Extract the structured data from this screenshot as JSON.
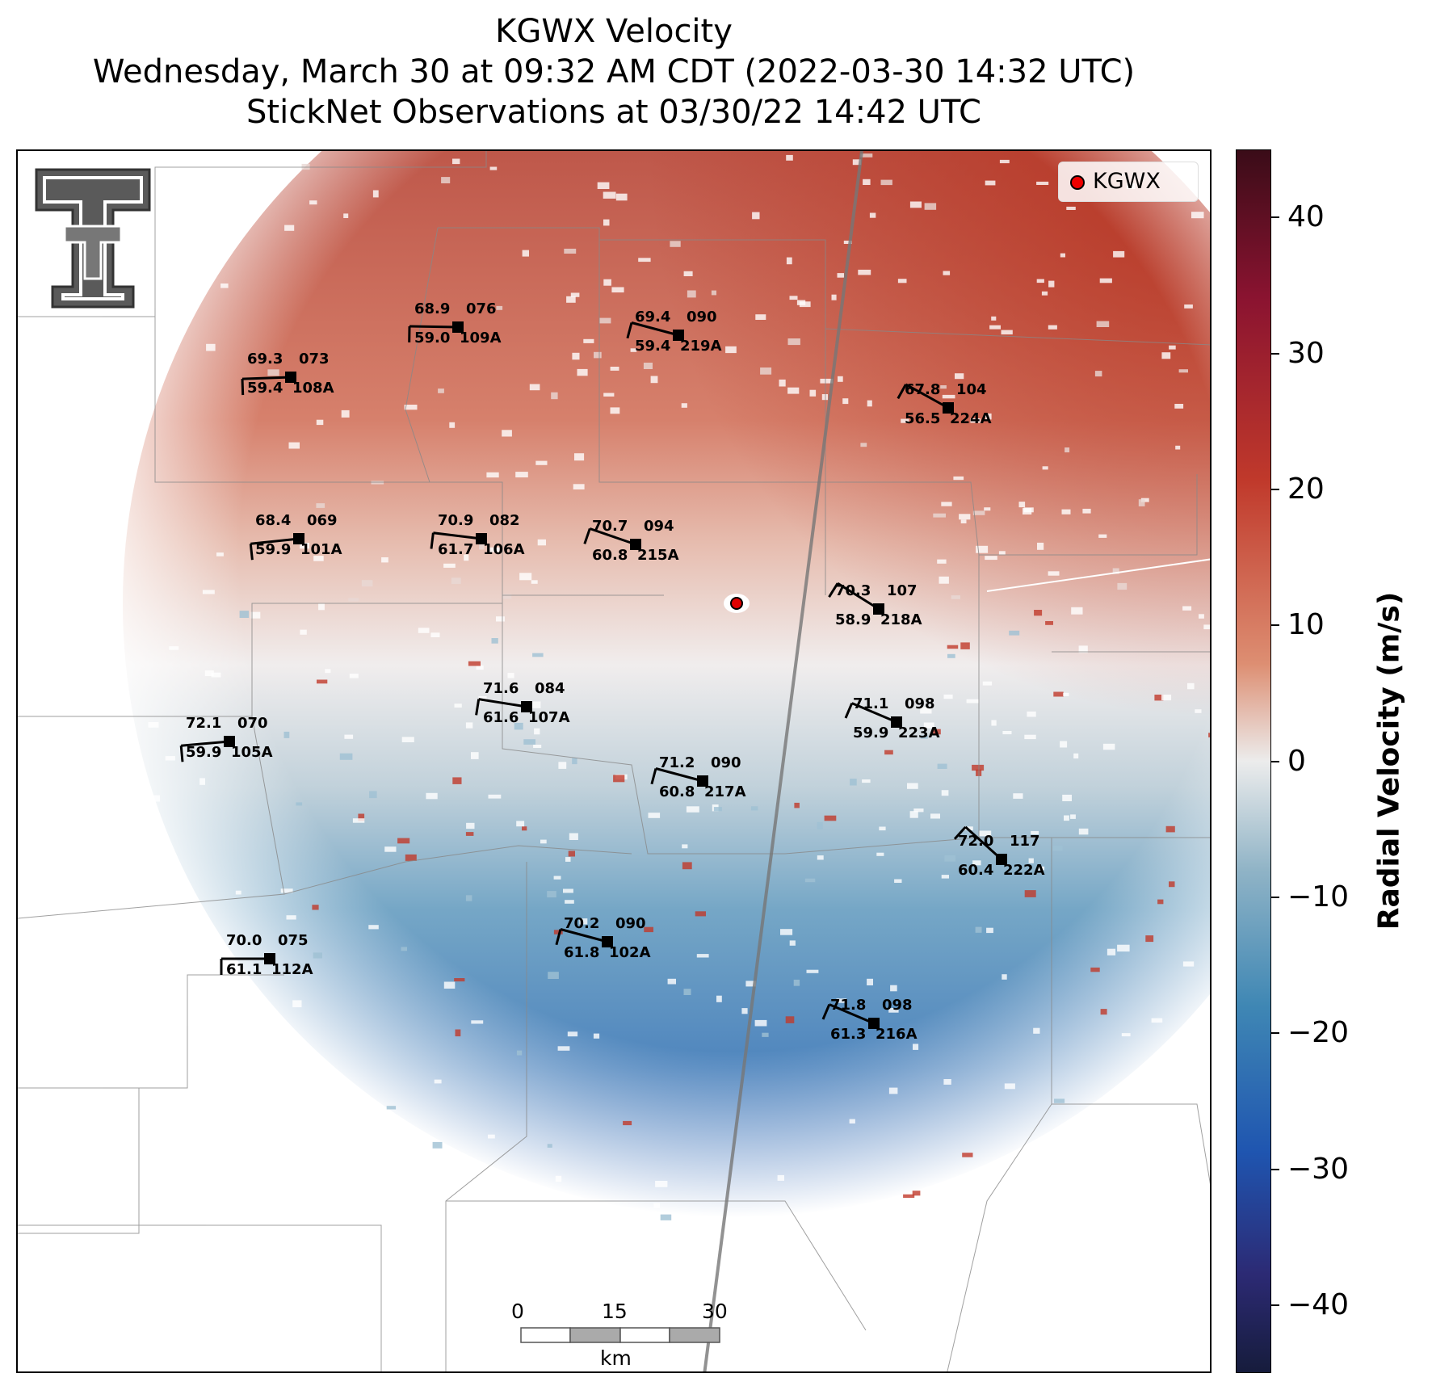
{
  "title": {
    "line1": "KGWX Velocity",
    "line2": "Wednesday, March 30 at 09:32 AM CDT (2022-03-30 14:32 UTC)",
    "line3": "StickNet Observations at 03/30/22 14:42 UTC"
  },
  "legend": {
    "label": "KGWX",
    "marker_color": "#e00000"
  },
  "colorbar": {
    "label": "Radial Velocity (m/s)",
    "ticks": [
      "40",
      "30",
      "20",
      "10",
      "0",
      "−10",
      "−20",
      "−30",
      "−40"
    ],
    "range": [
      -45,
      45
    ],
    "colors": {
      "max": "#3a0c18",
      "positive": "#c0392b",
      "zero": "#ececec",
      "negative": "#1f55b0",
      "min": "#161c3c"
    }
  },
  "scalebar": {
    "labels": [
      "0",
      "15",
      "30"
    ],
    "unit": "km"
  },
  "logo": {
    "icon": "texas-tech-double-t-logo"
  },
  "stations": [
    {
      "id": "108A",
      "temp": "69.3",
      "dew": "59.4",
      "dir": "073"
    },
    {
      "id": "109A",
      "temp": "68.9",
      "dew": "59.0",
      "dir": "076"
    },
    {
      "id": "219A",
      "temp": "69.4",
      "dew": "59.4",
      "dir": "090"
    },
    {
      "id": "224A",
      "temp": "67.8",
      "dew": "56.5",
      "dir": "104"
    },
    {
      "id": "101A",
      "temp": "68.4",
      "dew": "59.9",
      "dir": "069"
    },
    {
      "id": "106A",
      "temp": "70.9",
      "dew": "61.7",
      "dir": "082"
    },
    {
      "id": "215A",
      "temp": "70.7",
      "dew": "60.8",
      "dir": "094"
    },
    {
      "id": "218A",
      "temp": "70.3",
      "dew": "58.9",
      "dir": "107"
    },
    {
      "id": "107A",
      "temp": "71.6",
      "dew": "61.6",
      "dir": "084"
    },
    {
      "id": "223A",
      "temp": "71.1",
      "dew": "59.9",
      "dir": "098"
    },
    {
      "id": "105A",
      "temp": "72.1",
      "dew": "59.9",
      "dir": "070"
    },
    {
      "id": "217A",
      "temp": "71.2",
      "dew": "60.8",
      "dir": "090"
    },
    {
      "id": "222A",
      "temp": "72.0",
      "dew": "60.4",
      "dir": "117"
    },
    {
      "id": "102A",
      "temp": "70.2",
      "dew": "61.8",
      "dir": "090"
    },
    {
      "id": "112A",
      "temp": "70.0",
      "dew": "61.1",
      "dir": "075"
    },
    {
      "id": "216A",
      "temp": "71.8",
      "dew": "61.3",
      "dir": "098"
    }
  ]
}
